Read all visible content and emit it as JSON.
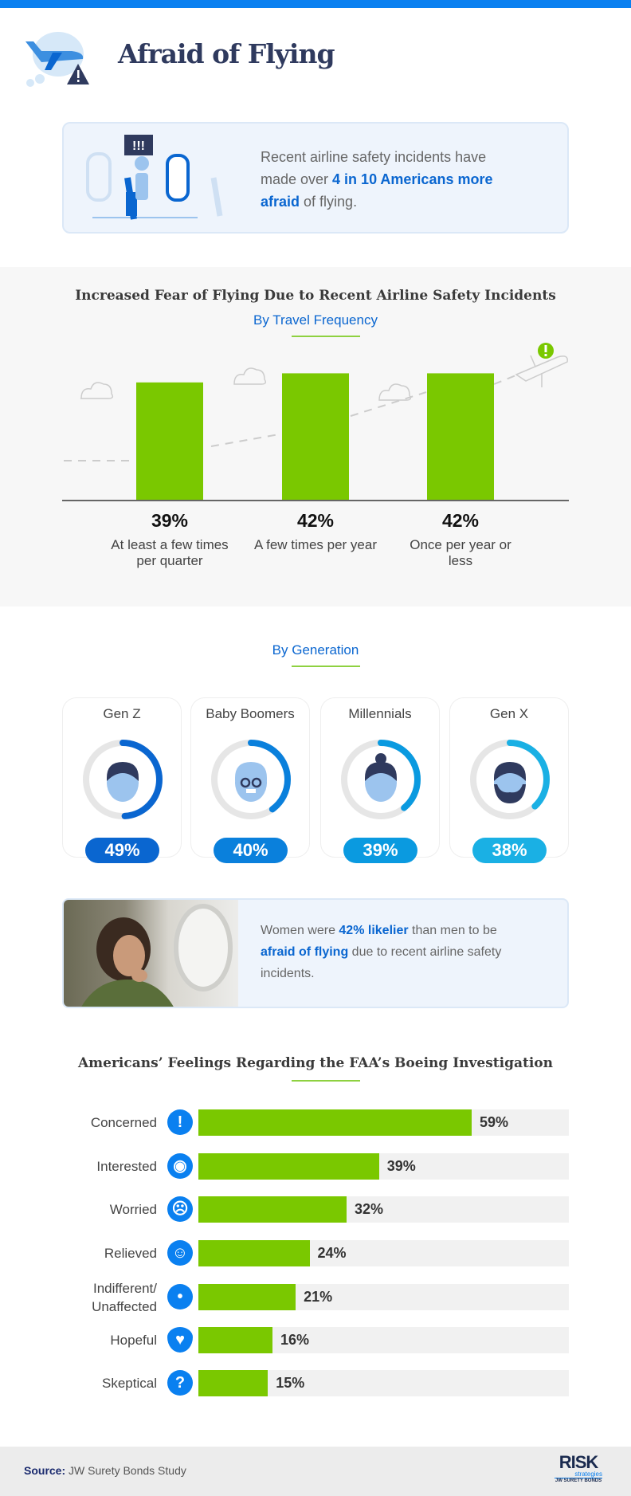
{
  "header": {
    "title": "Afraid of Flying"
  },
  "intro": {
    "text_before": "Recent airline safety incidents have made over ",
    "highlight": "4 in 10 Americans more afraid",
    "text_after": " of flying.",
    "bubble": "!!!"
  },
  "colors": {
    "blue": "#0a80f0",
    "green": "#7ac800",
    "navy": "#2f3a5e"
  },
  "chart_data": [
    {
      "type": "bar",
      "title": "Increased Fear of Flying Due to Recent Airline Safety Incidents",
      "subtitle": "By Travel Frequency",
      "categories": [
        "At least a few times per quarter",
        "A few times per year",
        "Once per year or less"
      ],
      "values": [
        39,
        42,
        42
      ],
      "labels": [
        "39%",
        "42%",
        "42%"
      ],
      "ylim": [
        0,
        50
      ]
    },
    {
      "type": "bar",
      "orientation": "horizontal",
      "title": "Americans’ Feelings Regarding the FAA’s Boeing Investigation",
      "categories": [
        "Concerned",
        "Interested",
        "Worried",
        "Relieved",
        "Indifferent/ Unaffected",
        "Hopeful",
        "Skeptical"
      ],
      "values": [
        59,
        39,
        32,
        24,
        21,
        16,
        15
      ],
      "labels": [
        "59%",
        "39%",
        "32%",
        "24%",
        "21%",
        "16%",
        "15%"
      ],
      "xlim": [
        0,
        80
      ]
    }
  ],
  "generation": {
    "subtitle": "By Generation",
    "items": [
      {
        "label": "Gen Z",
        "value": 49,
        "pct": "49%",
        "color": "#0a66d0"
      },
      {
        "label": "Baby Boomers",
        "value": 40,
        "pct": "40%",
        "color": "#0a80dc"
      },
      {
        "label": "Millennials",
        "value": 39,
        "pct": "39%",
        "color": "#0a9ae0"
      },
      {
        "label": "Gen X",
        "value": 38,
        "pct": "38%",
        "color": "#1ab0e4"
      }
    ]
  },
  "women": {
    "t1": "Women were ",
    "h1": "42% likelier",
    "t2": " than men to be ",
    "h2": "afraid of flying",
    "t3": " due to recent airline safety incidents."
  },
  "icons": [
    "exclamation-icon",
    "eye-icon",
    "sad-face-icon",
    "relieved-face-icon",
    "neutral-face-icon",
    "heart-icon",
    "question-icon"
  ],
  "footer": {
    "source_label": "Source:",
    "source": " JW Surety Bonds Study",
    "logo": "RISK strategies JW SURETY BONDS"
  }
}
